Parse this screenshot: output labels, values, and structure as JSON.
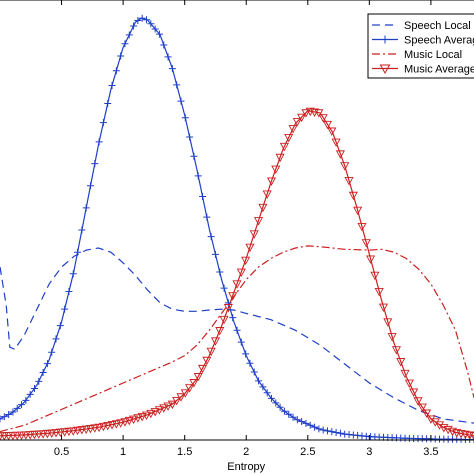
{
  "chart_data": {
    "type": "line",
    "title": "",
    "xlabel": "Entropy",
    "ylabel": "",
    "xlim": [
      0,
      3.85
    ],
    "ylim": [
      0,
      1
    ],
    "grid": false,
    "legend_placement": "top-right",
    "x_ticks": [
      0.5,
      1,
      1.5,
      2,
      2.5,
      3,
      3.5
    ],
    "x_tick_labels": [
      "0.5",
      "1",
      "1.5",
      "2",
      "2.5",
      "3",
      "3.5"
    ],
    "series": [
      {
        "name": "Speech Local",
        "color": "#1f3fc7",
        "dash": "8,5",
        "marker": "none",
        "points": [
          [
            0,
            0.41
          ],
          [
            0.05,
            0.32
          ],
          [
            0.08,
            0.22
          ],
          [
            0.12,
            0.215
          ],
          [
            0.2,
            0.25
          ],
          [
            0.3,
            0.31
          ],
          [
            0.4,
            0.37
          ],
          [
            0.5,
            0.41
          ],
          [
            0.6,
            0.435
          ],
          [
            0.7,
            0.45
          ],
          [
            0.8,
            0.455
          ],
          [
            0.9,
            0.445
          ],
          [
            1.0,
            0.42
          ],
          [
            1.1,
            0.39
          ],
          [
            1.2,
            0.355
          ],
          [
            1.3,
            0.325
          ],
          [
            1.4,
            0.31
          ],
          [
            1.5,
            0.305
          ],
          [
            1.6,
            0.305
          ],
          [
            1.7,
            0.308
          ],
          [
            1.8,
            0.31
          ],
          [
            1.9,
            0.308
          ],
          [
            2.0,
            0.3
          ],
          [
            2.2,
            0.285
          ],
          [
            2.4,
            0.26
          ],
          [
            2.6,
            0.225
          ],
          [
            2.8,
            0.18
          ],
          [
            3.0,
            0.135
          ],
          [
            3.2,
            0.1
          ],
          [
            3.4,
            0.07
          ],
          [
            3.6,
            0.05
          ],
          [
            3.85,
            0.04
          ]
        ]
      },
      {
        "name": "Speech Average",
        "color": "#1f3fc7",
        "dash": "",
        "marker": "plus",
        "points": [
          [
            0,
            0.05
          ],
          [
            0.1,
            0.065
          ],
          [
            0.2,
            0.09
          ],
          [
            0.3,
            0.13
          ],
          [
            0.4,
            0.19
          ],
          [
            0.5,
            0.28
          ],
          [
            0.6,
            0.4
          ],
          [
            0.7,
            0.55
          ],
          [
            0.8,
            0.7
          ],
          [
            0.9,
            0.83
          ],
          [
            1.0,
            0.93
          ],
          [
            1.1,
            0.99
          ],
          [
            1.15,
            1.0
          ],
          [
            1.2,
            0.995
          ],
          [
            1.3,
            0.96
          ],
          [
            1.4,
            0.88
          ],
          [
            1.5,
            0.77
          ],
          [
            1.6,
            0.64
          ],
          [
            1.7,
            0.5
          ],
          [
            1.8,
            0.38
          ],
          [
            1.9,
            0.28
          ],
          [
            2.0,
            0.2
          ],
          [
            2.1,
            0.14
          ],
          [
            2.2,
            0.1
          ],
          [
            2.3,
            0.07
          ],
          [
            2.4,
            0.05
          ],
          [
            2.6,
            0.025
          ],
          [
            2.8,
            0.014
          ],
          [
            3.0,
            0.008
          ],
          [
            3.3,
            0.004
          ],
          [
            3.6,
            0.002
          ],
          [
            3.85,
            0.001
          ]
        ]
      },
      {
        "name": "Music Local",
        "color": "#cc1f1f",
        "dash": "8,3,2,3",
        "marker": "none",
        "points": [
          [
            0,
            0.02
          ],
          [
            0.2,
            0.035
          ],
          [
            0.4,
            0.06
          ],
          [
            0.6,
            0.085
          ],
          [
            0.8,
            0.11
          ],
          [
            1.0,
            0.135
          ],
          [
            1.2,
            0.16
          ],
          [
            1.4,
            0.185
          ],
          [
            1.5,
            0.2
          ],
          [
            1.6,
            0.225
          ],
          [
            1.7,
            0.26
          ],
          [
            1.8,
            0.3
          ],
          [
            1.9,
            0.34
          ],
          [
            2.0,
            0.38
          ],
          [
            2.1,
            0.41
          ],
          [
            2.2,
            0.43
          ],
          [
            2.3,
            0.445
          ],
          [
            2.4,
            0.455
          ],
          [
            2.5,
            0.46
          ],
          [
            2.6,
            0.458
          ],
          [
            2.8,
            0.452
          ],
          [
            3.0,
            0.45
          ],
          [
            3.1,
            0.452
          ],
          [
            3.2,
            0.445
          ],
          [
            3.3,
            0.43
          ],
          [
            3.4,
            0.405
          ],
          [
            3.5,
            0.37
          ],
          [
            3.6,
            0.32
          ],
          [
            3.7,
            0.26
          ],
          [
            3.8,
            0.16
          ],
          [
            3.85,
            0.1
          ]
        ]
      },
      {
        "name": "Music Average",
        "color": "#cc1f1f",
        "dash": "",
        "marker": "triangle-down",
        "points": [
          [
            0,
            0.01
          ],
          [
            0.2,
            0.012
          ],
          [
            0.4,
            0.016
          ],
          [
            0.6,
            0.022
          ],
          [
            0.8,
            0.03
          ],
          [
            1.0,
            0.042
          ],
          [
            1.2,
            0.06
          ],
          [
            1.4,
            0.085
          ],
          [
            1.5,
            0.11
          ],
          [
            1.6,
            0.145
          ],
          [
            1.7,
            0.2
          ],
          [
            1.8,
            0.27
          ],
          [
            1.9,
            0.35
          ],
          [
            2.0,
            0.43
          ],
          [
            2.1,
            0.52
          ],
          [
            2.2,
            0.61
          ],
          [
            2.3,
            0.69
          ],
          [
            2.4,
            0.75
          ],
          [
            2.5,
            0.78
          ],
          [
            2.6,
            0.775
          ],
          [
            2.7,
            0.73
          ],
          [
            2.8,
            0.65
          ],
          [
            2.9,
            0.55
          ],
          [
            3.0,
            0.44
          ],
          [
            3.1,
            0.33
          ],
          [
            3.2,
            0.23
          ],
          [
            3.3,
            0.15
          ],
          [
            3.4,
            0.09
          ],
          [
            3.5,
            0.05
          ],
          [
            3.6,
            0.03
          ],
          [
            3.7,
            0.018
          ],
          [
            3.85,
            0.01
          ]
        ]
      }
    ]
  }
}
